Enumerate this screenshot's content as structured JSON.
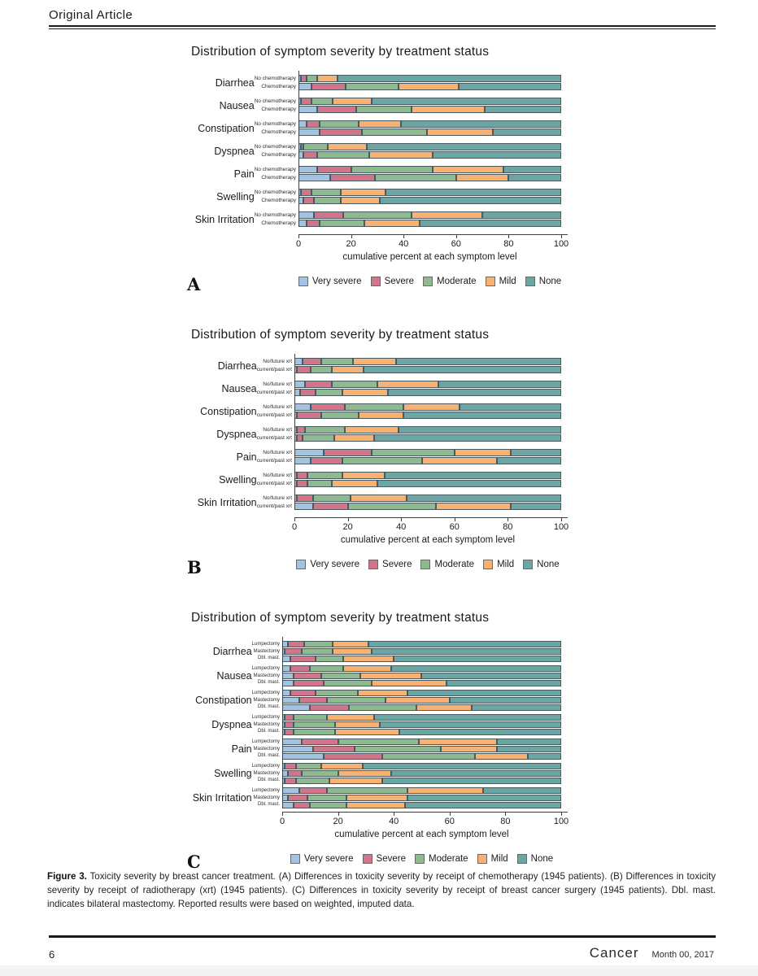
{
  "page": {
    "header": "Original Article",
    "footer": {
      "page_number": "6",
      "journal": "Cancer",
      "date": "Month 00, 2017"
    }
  },
  "caption": {
    "label": "Figure 3.",
    "text": " Toxicity severity by breast cancer treatment. (A) Differences in toxicity severity by receipt of chemotherapy (1945 patients). (B) Differences in toxicity severity by receipt of radiotherapy (xrt) (1945 patients). (C) Differences in toxicity severity by receipt of breast cancer surgery (1945 patients). Dbl. mast. indicates bilateral mastectomy. Reported results were based on weighted, imputed data."
  },
  "legend": {
    "entries": [
      {
        "label": "Very severe",
        "color": "#a3c3e3"
      },
      {
        "label": "Severe",
        "color": "#d3758a"
      },
      {
        "label": "Moderate",
        "color": "#8dbb8f"
      },
      {
        "label": "Mild",
        "color": "#f8b170"
      },
      {
        "label": "None",
        "color": "#6aa6a4"
      }
    ]
  },
  "chart_data": [
    {
      "type": "bar",
      "panel": "A",
      "title": "Distribution of symptom severity by treatment status",
      "xlabel": "cumulative percent at each symptom level",
      "orientation": "horizontal",
      "stacked": true,
      "xlim": [
        0,
        100
      ],
      "xticks": [
        0,
        20,
        40,
        60,
        80,
        100
      ],
      "stack_order": [
        "Very severe",
        "Severe",
        "Moderate",
        "Mild",
        "None"
      ],
      "subgroups": [
        "No chemotherapy",
        "Chemotherapy"
      ],
      "rows": [
        {
          "symptom": "Diarrhea",
          "bars": [
            {
              "label": "No chemotherapy",
              "values": [
                1,
                2,
                4,
                8,
                85
              ]
            },
            {
              "label": "Chemotherapy",
              "values": [
                5,
                13,
                20,
                23,
                39
              ]
            }
          ]
        },
        {
          "symptom": "Nausea",
          "bars": [
            {
              "label": "No chemotherapy",
              "values": [
                1,
                4,
                8,
                15,
                72
              ]
            },
            {
              "label": "Chemotherapy",
              "values": [
                7,
                15,
                21,
                28,
                29
              ]
            }
          ]
        },
        {
          "symptom": "Constipation",
          "bars": [
            {
              "label": "No chemotherapy",
              "values": [
                3,
                5,
                15,
                16,
                61
              ]
            },
            {
              "label": "Chemotherapy",
              "values": [
                8,
                16,
                25,
                25,
                26
              ]
            }
          ]
        },
        {
          "symptom": "Dyspnea",
          "bars": [
            {
              "label": "No chemotherapy",
              "values": [
                1,
                1,
                9,
                15,
                74
              ]
            },
            {
              "label": "Chemotherapy",
              "values": [
                2,
                5,
                20,
                24,
                49
              ]
            }
          ]
        },
        {
          "symptom": "Pain",
          "bars": [
            {
              "label": "No chemotherapy",
              "values": [
                7,
                13,
                31,
                27,
                22
              ]
            },
            {
              "label": "Chemotherapy",
              "values": [
                12,
                17,
                31,
                20,
                20
              ]
            }
          ]
        },
        {
          "symptom": "Swelling",
          "bars": [
            {
              "label": "No chemotherapy",
              "values": [
                1,
                4,
                11,
                17,
                67
              ]
            },
            {
              "label": "Chemotherapy",
              "values": [
                2,
                4,
                10,
                15,
                69
              ]
            }
          ]
        },
        {
          "symptom": "Skin Irritation",
          "bars": [
            {
              "label": "No chemotherapy",
              "values": [
                6,
                11,
                26,
                27,
                30
              ]
            },
            {
              "label": "Chemotherapy",
              "values": [
                3,
                5,
                17,
                21,
                54
              ]
            }
          ]
        }
      ]
    },
    {
      "type": "bar",
      "panel": "B",
      "title": "Distribution of symptom severity by treatment status",
      "xlabel": "cumulative percent at each symptom level",
      "orientation": "horizontal",
      "stacked": true,
      "xlim": [
        0,
        100
      ],
      "xticks": [
        0,
        20,
        40,
        60,
        80,
        100
      ],
      "stack_order": [
        "Very severe",
        "Severe",
        "Moderate",
        "Mild",
        "None"
      ],
      "subgroups": [
        "No/future xrt",
        "current/past xrt"
      ],
      "rows": [
        {
          "symptom": "Diarrhea",
          "bars": [
            {
              "label": "No/future xrt",
              "values": [
                3,
                7,
                12,
                16,
                62
              ]
            },
            {
              "label": "current/past xrt",
              "values": [
                1,
                5,
                8,
                12,
                74
              ]
            }
          ]
        },
        {
          "symptom": "Nausea",
          "bars": [
            {
              "label": "No/future xrt",
              "values": [
                4,
                10,
                17,
                23,
                46
              ]
            },
            {
              "label": "current/past xrt",
              "values": [
                2,
                6,
                10,
                17,
                65
              ]
            }
          ]
        },
        {
          "symptom": "Constipation",
          "bars": [
            {
              "label": "No/future xrt",
              "values": [
                6,
                13,
                22,
                21,
                38
              ]
            },
            {
              "label": "current/past xrt",
              "values": [
                1,
                9,
                14,
                17,
                59
              ]
            }
          ]
        },
        {
          "symptom": "Dyspnea",
          "bars": [
            {
              "label": "No/future xrt",
              "values": [
                1,
                3,
                15,
                20,
                61
              ]
            },
            {
              "label": "current/past xrt",
              "values": [
                1,
                2,
                12,
                15,
                70
              ]
            }
          ]
        },
        {
          "symptom": "Pain",
          "bars": [
            {
              "label": "No/future xrt",
              "values": [
                11,
                18,
                31,
                21,
                19
              ]
            },
            {
              "label": "current/past xrt",
              "values": [
                6,
                12,
                30,
                28,
                24
              ]
            }
          ]
        },
        {
          "symptom": "Swelling",
          "bars": [
            {
              "label": "No/future xrt",
              "values": [
                1,
                4,
                13,
                16,
                66
              ]
            },
            {
              "label": "current/past xrt",
              "values": [
                1,
                4,
                9,
                17,
                69
              ]
            }
          ]
        },
        {
          "symptom": "Skin Irritation",
          "bars": [
            {
              "label": "No/future xrt",
              "values": [
                1,
                6,
                14,
                21,
                58
              ]
            },
            {
              "label": "current/past xrt",
              "values": [
                7,
                13,
                33,
                28,
                19
              ]
            }
          ]
        }
      ]
    },
    {
      "type": "bar",
      "panel": "C",
      "title": "Distribution of symptom severity by treatment status",
      "xlabel": "cumulative percent at each symptom level",
      "orientation": "horizontal",
      "stacked": true,
      "xlim": [
        0,
        100
      ],
      "xticks": [
        0,
        20,
        40,
        60,
        80,
        100
      ],
      "stack_order": [
        "Very severe",
        "Severe",
        "Moderate",
        "Mild",
        "None"
      ],
      "subgroups": [
        "Lumpectomy",
        "Mastectomy",
        "Dbl. mast."
      ],
      "rows": [
        {
          "symptom": "Diarrhea",
          "bars": [
            {
              "label": "Lumpectomy",
              "values": [
                2,
                6,
                10,
                13,
                69
              ]
            },
            {
              "label": "Mastectomy",
              "values": [
                1,
                6,
                11,
                14,
                68
              ]
            },
            {
              "label": "Dbl. mast.",
              "values": [
                3,
                9,
                10,
                18,
                60
              ]
            }
          ]
        },
        {
          "symptom": "Nausea",
          "bars": [
            {
              "label": "Lumpectomy",
              "values": [
                3,
                7,
                12,
                17,
                61
              ]
            },
            {
              "label": "Mastectomy",
              "values": [
                4,
                10,
                14,
                22,
                50
              ]
            },
            {
              "label": "Dbl. mast.",
              "values": [
                4,
                11,
                17,
                27,
                41
              ]
            }
          ]
        },
        {
          "symptom": "Constipation",
          "bars": [
            {
              "label": "Lumpectomy",
              "values": [
                3,
                9,
                15,
                18,
                55
              ]
            },
            {
              "label": "Mastectomy",
              "values": [
                6,
                10,
                21,
                23,
                40
              ]
            },
            {
              "label": "Dbl. mast.",
              "values": [
                10,
                14,
                24,
                20,
                32
              ]
            }
          ]
        },
        {
          "symptom": "Dyspnea",
          "bars": [
            {
              "label": "Lumpectomy",
              "values": [
                1,
                3,
                12,
                17,
                67
              ]
            },
            {
              "label": "Mastectomy",
              "values": [
                1,
                3,
                15,
                16,
                65
              ]
            },
            {
              "label": "Dbl. mast.",
              "values": [
                1,
                3,
                15,
                23,
                58
              ]
            }
          ]
        },
        {
          "symptom": "Pain",
          "bars": [
            {
              "label": "Lumpectomy",
              "values": [
                7,
                13,
                29,
                28,
                23
              ]
            },
            {
              "label": "Mastectomy",
              "values": [
                11,
                15,
                31,
                20,
                23
              ]
            },
            {
              "label": "Dbl. mast.",
              "values": [
                15,
                21,
                33,
                19,
                12
              ]
            }
          ]
        },
        {
          "symptom": "Swelling",
          "bars": [
            {
              "label": "Lumpectomy",
              "values": [
                1,
                4,
                9,
                15,
                71
              ]
            },
            {
              "label": "Mastectomy",
              "values": [
                2,
                5,
                13,
                19,
                61
              ]
            },
            {
              "label": "Dbl. mast.",
              "values": [
                1,
                4,
                12,
                19,
                64
              ]
            }
          ]
        },
        {
          "symptom": "Skin Irritation",
          "bars": [
            {
              "label": "Lumpectomy",
              "values": [
                6,
                10,
                29,
                27,
                28
              ]
            },
            {
              "label": "Mastectomy",
              "values": [
                2,
                7,
                14,
                22,
                55
              ]
            },
            {
              "label": "Dbl. mast.",
              "values": [
                4,
                6,
                13,
                21,
                56
              ]
            }
          ]
        }
      ]
    }
  ]
}
